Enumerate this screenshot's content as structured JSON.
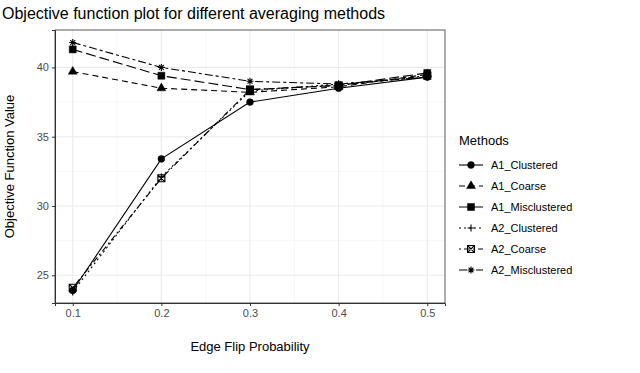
{
  "chart_data": {
    "type": "line",
    "title": "Objective function plot for different averaging methods",
    "x_label": "Edge Flip Probability",
    "y_label": "Objective Function Value",
    "legend_title": "Methods",
    "x": [
      0.1,
      0.2,
      0.3,
      0.4,
      0.5
    ],
    "xlim": [
      0.08,
      0.52
    ],
    "xticks": [
      0.1,
      0.2,
      0.3,
      0.4,
      0.5
    ],
    "ylim": [
      23.0,
      42.7
    ],
    "yticks": [
      25,
      30,
      35,
      40
    ],
    "grid": true,
    "legend": "right",
    "series": [
      {
        "name": "A1_Clustered",
        "color": "#000000",
        "marker": "circle",
        "line_style": "solid",
        "values": [
          23.9,
          33.4,
          37.5,
          38.5,
          39.3
        ]
      },
      {
        "name": "A1_Coarse",
        "color": "#000000",
        "marker": "triangle",
        "line_style": "dashed",
        "values": [
          39.7,
          38.5,
          38.2,
          38.6,
          39.5
        ]
      },
      {
        "name": "A1_Misclustered",
        "color": "#000000",
        "marker": "square",
        "line_style": "longdash",
        "values": [
          41.3,
          39.4,
          38.4,
          38.7,
          39.6
        ]
      },
      {
        "name": "A2_Clustered",
        "color": "#000000",
        "marker": "plus",
        "line_style": "dotted",
        "values": [
          23.8,
          32.1,
          38.3,
          38.8,
          39.3
        ]
      },
      {
        "name": "A2_Coarse",
        "color": "#000000",
        "marker": "square-cross",
        "line_style": "dotdash",
        "values": [
          24.1,
          32.0,
          38.4,
          38.7,
          39.4
        ]
      },
      {
        "name": "A2_Misclustered",
        "color": "#000000",
        "marker": "asterisk",
        "line_style": "twodash",
        "values": [
          41.8,
          40.0,
          39.0,
          38.8,
          39.3
        ]
      }
    ]
  }
}
